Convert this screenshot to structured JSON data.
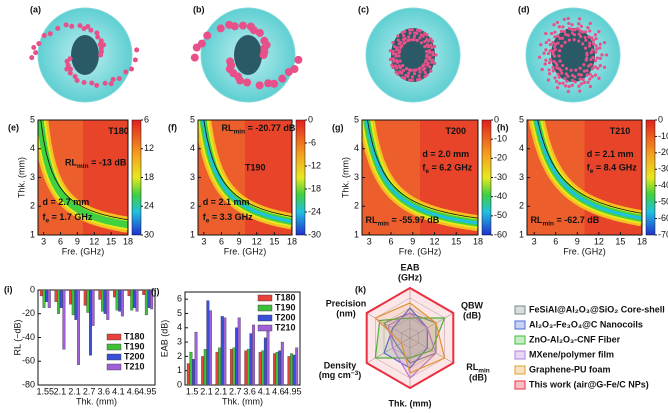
{
  "spheres": [
    "(a)",
    "(b)",
    "(c)",
    "(d)"
  ],
  "chart_data": [
    {
      "type": "heatmap",
      "panel": "(e)",
      "xlabel": "Fre. (GHz)",
      "ylabel": "Thk. (mm)",
      "xlim": [
        2,
        18
      ],
      "xticks": [
        3,
        6,
        9,
        12,
        15,
        18
      ],
      "ylim": [
        1,
        5
      ],
      "yticks": [
        1,
        2,
        3,
        4,
        5
      ],
      "clim": [
        6,
        30
      ],
      "cticks": [
        6,
        12,
        18,
        24,
        30
      ],
      "annotations": [
        "T180",
        {
          "text": "RL",
          "sub": "min",
          "rest": " = -13 dB"
        },
        "d = 2.7 mm",
        {
          "text": "f",
          "sub": "e",
          "rest": " = 1.7 GHz"
        }
      ]
    },
    {
      "type": "heatmap",
      "panel": "(f)",
      "xlabel": "Fre. (GHz)",
      "xlim": [
        2,
        18
      ],
      "xticks": [
        3,
        6,
        9,
        12,
        15,
        18
      ],
      "ylim": [
        1,
        5
      ],
      "yticks": [
        1,
        2,
        3,
        4,
        5
      ],
      "clim": [
        0,
        -30
      ],
      "cticks": [
        0,
        -6,
        -12,
        -18,
        -24,
        -30
      ],
      "annotations": [
        {
          "text": "RL",
          "sub": "min",
          "rest": " = -20.77 dB"
        },
        "T190",
        "d = 2.1 mm",
        {
          "text": "f",
          "sub": "e",
          "rest": " = 3.3 GHz"
        }
      ]
    },
    {
      "type": "heatmap",
      "panel": "(g)",
      "xlabel": "Fre. (GHz)",
      "ylabel": "Thk. (mm)",
      "xlim": [
        2,
        18
      ],
      "xticks": [
        3,
        6,
        9,
        12,
        15,
        18
      ],
      "ylim": [
        1,
        5
      ],
      "yticks": [
        1,
        2,
        3,
        4,
        5
      ],
      "clim": [
        0,
        -60
      ],
      "cticks": [
        0,
        -10,
        -20,
        -30,
        -40,
        -50,
        -60
      ],
      "annotations": [
        "T200",
        "d = 2.0 mm",
        {
          "text": "f",
          "sub": "e",
          "rest": " = 6.2 GHz"
        },
        {
          "text": "RL",
          "sub": "min",
          "rest": " = -55.97 dB"
        }
      ]
    },
    {
      "type": "heatmap",
      "panel": "(h)",
      "xlabel": "Fre. (GHz)",
      "xlim": [
        2,
        18
      ],
      "xticks": [
        3,
        6,
        9,
        12,
        15,
        18
      ],
      "ylim": [
        1,
        5
      ],
      "yticks": [
        1,
        2,
        3,
        4,
        5
      ],
      "clim": [
        0,
        -70
      ],
      "cticks": [
        0,
        -10,
        -20,
        -30,
        -40,
        -50,
        -60,
        -70
      ],
      "annotations": [
        "T210",
        "d = 2.1 mm",
        {
          "text": "f",
          "sub": "e",
          "rest": " = 8.4 GHz"
        },
        {
          "text": "RL",
          "sub": "min",
          "rest": " = -62.7 dB"
        }
      ]
    },
    {
      "type": "bar",
      "panel": "(i)",
      "ylabel": "RL (−dB)",
      "xlabel": "Thk. (mm)",
      "categories": [
        "1.55",
        "2.1",
        "2.1",
        "2.7",
        "3.6",
        "4.1",
        "4.6",
        "4.95"
      ],
      "ylim": [
        -80,
        0
      ],
      "yticks": [
        0,
        -20,
        -40,
        -60,
        -80
      ],
      "series": [
        {
          "name": "T180",
          "color": "#e8403a",
          "values": [
            -5,
            -10,
            -12,
            -13,
            -8,
            -6,
            -5,
            -4
          ]
        },
        {
          "name": "T190",
          "color": "#3fbf3a",
          "values": [
            -15,
            -20,
            -21,
            -19,
            -18,
            -17,
            -17,
            -21
          ]
        },
        {
          "name": "T200",
          "color": "#3a4fd8",
          "values": [
            -10,
            -15,
            -25,
            -55,
            -20,
            -18,
            -15,
            -15
          ]
        },
        {
          "name": "T210",
          "color": "#a060d8",
          "values": [
            -15,
            -50,
            -63,
            -30,
            -25,
            -22,
            -18,
            -16
          ]
        }
      ]
    },
    {
      "type": "bar",
      "panel": "(j)",
      "ylabel": "EAB (dB)",
      "xlabel": "Thk. (mm)",
      "categories": [
        "1.5",
        "2.1",
        "2.1",
        "2.7",
        "3.6",
        "4.1",
        "4.6",
        "4.95"
      ],
      "ylim": [
        0,
        6.5
      ],
      "yticks": [
        0,
        1,
        2,
        3,
        4,
        5,
        6
      ],
      "series": [
        {
          "name": "T180",
          "color": "#e8403a",
          "values": [
            1.5,
            2.0,
            2.3,
            2.5,
            2.4,
            2.3,
            2.2,
            2.0
          ]
        },
        {
          "name": "T190",
          "color": "#3fbf3a",
          "values": [
            2.3,
            2.5,
            2.6,
            2.6,
            2.5,
            2.4,
            2.3,
            2.2
          ]
        },
        {
          "name": "T200",
          "color": "#3a4fd8",
          "values": [
            1.8,
            5.9,
            4.8,
            4.0,
            3.6,
            3.3,
            2.4,
            2.1
          ]
        },
        {
          "name": "T210",
          "color": "#a060d8",
          "values": [
            3.7,
            5.2,
            4.7,
            4.7,
            4.2,
            3.9,
            3.0,
            2.6
          ]
        }
      ]
    },
    {
      "type": "radar",
      "panel": "(k)",
      "rlim": [
        0,
        5
      ],
      "axes": [
        [
          "EAB",
          "(GHz)"
        ],
        [
          "QBW",
          "(dB)"
        ],
        [
          {
            "text": "RL",
            "sub": "min"
          },
          "(dB)"
        ],
        [
          "Thk. (mm)"
        ],
        [
          "Density",
          {
            "text": "(mg cm",
            "sup": "−3",
            "rest": ")"
          }
        ],
        [
          "Precision",
          "(nm)"
        ]
      ],
      "series": [
        {
          "name": "FeSiAl@Al₂O₃@SiO₂ Core-shell",
          "color": "#7a8a8a",
          "values": [
            2.5,
            3,
            3,
            2.5,
            1.5,
            3
          ]
        },
        {
          "name": "Al₂O₃-Fe₃O₄@C Nanocoils",
          "color": "#4a6ad8",
          "values": [
            3,
            2,
            2,
            3,
            3,
            2
          ]
        },
        {
          "name": "ZnO-Al₂O₃-CNF Fiber",
          "color": "#3fbf3a",
          "values": [
            2,
            4,
            2.5,
            2,
            4,
            3.5
          ]
        },
        {
          "name": "MXene/polymer film",
          "color": "#b080e0",
          "values": [
            2.5,
            2,
            3,
            4,
            2,
            2.5
          ]
        },
        {
          "name": "Graphene-PU foam",
          "color": "#e0a030",
          "values": [
            3.5,
            3,
            4,
            3.5,
            1,
            4
          ]
        },
        {
          "name": "This work (air@G-Fe/C NPs)",
          "color": "#e83040",
          "values": [
            5,
            5,
            5,
            5,
            5,
            5
          ]
        }
      ]
    }
  ]
}
